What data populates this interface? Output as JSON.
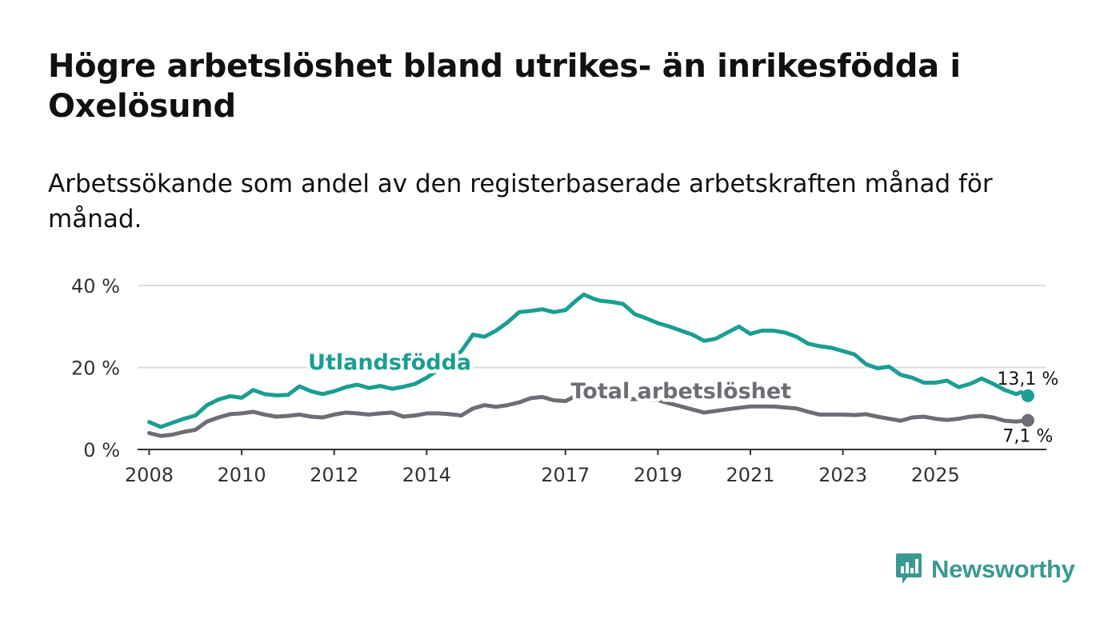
{
  "header": {
    "title": "Högre arbetslöshet bland utrikes- än inrikesfödda i Oxelösund",
    "subtitle": "Arbetssökande som andel av den registerbaserade arbetskraften månad för månad."
  },
  "brand": {
    "name": "Newsworthy",
    "color": "#3a9a92"
  },
  "colors": {
    "foreign": "#1a9e92",
    "total": "#6e6c74",
    "grid": "#dcdcdc",
    "axis": "#333333"
  },
  "chart_data": {
    "type": "line",
    "title": "Högre arbetslöshet bland utrikes- än inrikesfödda i Oxelösund",
    "subtitle": "Arbetssökande som andel av den registerbaserade arbetskraften månad för månad.",
    "xlabel": "",
    "ylabel": "",
    "xlim": [
      2007.75,
      2027.4
    ],
    "ylim": [
      0,
      40
    ],
    "y_ticks": [
      0,
      20,
      40
    ],
    "y_tick_labels": [
      "0 %",
      "20 %",
      "40 %"
    ],
    "x_ticks": [
      2008,
      2010,
      2012,
      2014,
      2017,
      2019,
      2021,
      2023,
      2025
    ],
    "x_tick_labels": [
      "2008",
      "2010",
      "2012",
      "2014",
      "2017",
      "2019",
      "2021",
      "2023",
      "2025"
    ],
    "grid": true,
    "series": [
      {
        "name": "Utlandsfödda",
        "color": "#1a9e92",
        "end_label": "13,1 %",
        "points": [
          [
            2008.0,
            6.7
          ],
          [
            2008.25,
            5.5
          ],
          [
            2008.5,
            6.5
          ],
          [
            2008.75,
            7.5
          ],
          [
            2009.0,
            8.3
          ],
          [
            2009.25,
            10.8
          ],
          [
            2009.5,
            12.2
          ],
          [
            2009.75,
            13.0
          ],
          [
            2010.0,
            12.6
          ],
          [
            2010.25,
            14.5
          ],
          [
            2010.5,
            13.5
          ],
          [
            2010.75,
            13.2
          ],
          [
            2011.0,
            13.3
          ],
          [
            2011.25,
            15.4
          ],
          [
            2011.5,
            14.2
          ],
          [
            2011.75,
            13.5
          ],
          [
            2012.0,
            14.2
          ],
          [
            2012.25,
            15.2
          ],
          [
            2012.5,
            15.8
          ],
          [
            2012.75,
            15.0
          ],
          [
            2013.0,
            15.5
          ],
          [
            2013.25,
            14.8
          ],
          [
            2013.5,
            15.3
          ],
          [
            2013.75,
            16.0
          ],
          [
            2014.0,
            17.5
          ],
          [
            2014.25,
            19.5
          ],
          [
            2014.5,
            21.5
          ],
          [
            2014.75,
            24.0
          ],
          [
            2015.0,
            28.0
          ],
          [
            2015.25,
            27.5
          ],
          [
            2015.5,
            29.0
          ],
          [
            2015.75,
            31.0
          ],
          [
            2016.0,
            33.5
          ],
          [
            2016.25,
            33.8
          ],
          [
            2016.5,
            34.2
          ],
          [
            2016.75,
            33.5
          ],
          [
            2017.0,
            34.0
          ],
          [
            2017.25,
            36.5
          ],
          [
            2017.4,
            37.8
          ],
          [
            2017.6,
            36.8
          ],
          [
            2017.75,
            36.3
          ],
          [
            2018.0,
            36.0
          ],
          [
            2018.25,
            35.5
          ],
          [
            2018.5,
            33.0
          ],
          [
            2018.75,
            32.0
          ],
          [
            2019.0,
            30.8
          ],
          [
            2019.25,
            30.0
          ],
          [
            2019.5,
            29.0
          ],
          [
            2019.75,
            28.0
          ],
          [
            2020.0,
            26.5
          ],
          [
            2020.25,
            27.0
          ],
          [
            2020.5,
            28.5
          ],
          [
            2020.75,
            30.0
          ],
          [
            2021.0,
            28.2
          ],
          [
            2021.25,
            29.0
          ],
          [
            2021.5,
            29.0
          ],
          [
            2021.75,
            28.5
          ],
          [
            2022.0,
            27.5
          ],
          [
            2022.25,
            25.8
          ],
          [
            2022.5,
            25.2
          ],
          [
            2022.75,
            24.8
          ],
          [
            2023.0,
            24.0
          ],
          [
            2023.25,
            23.2
          ],
          [
            2023.5,
            20.8
          ],
          [
            2023.75,
            19.8
          ],
          [
            2024.0,
            20.2
          ],
          [
            2024.25,
            18.2
          ],
          [
            2024.5,
            17.5
          ],
          [
            2024.75,
            16.3
          ],
          [
            2025.0,
            16.3
          ],
          [
            2025.25,
            16.8
          ],
          [
            2025.5,
            15.2
          ],
          [
            2025.75,
            16.0
          ],
          [
            2026.0,
            17.3
          ],
          [
            2026.25,
            16.0
          ],
          [
            2026.5,
            14.5
          ],
          [
            2026.75,
            13.5
          ],
          [
            2026.85,
            14.0
          ],
          [
            2027.0,
            13.1
          ]
        ]
      },
      {
        "name": "Total arbetslöshet",
        "color": "#6e6c74",
        "end_label": "7,1 %",
        "points": [
          [
            2008.0,
            4.0
          ],
          [
            2008.25,
            3.3
          ],
          [
            2008.5,
            3.6
          ],
          [
            2008.75,
            4.3
          ],
          [
            2009.0,
            4.8
          ],
          [
            2009.25,
            6.8
          ],
          [
            2009.5,
            7.8
          ],
          [
            2009.75,
            8.6
          ],
          [
            2010.0,
            8.8
          ],
          [
            2010.25,
            9.2
          ],
          [
            2010.5,
            8.5
          ],
          [
            2010.75,
            8.0
          ],
          [
            2011.0,
            8.2
          ],
          [
            2011.25,
            8.5
          ],
          [
            2011.5,
            8.0
          ],
          [
            2011.75,
            7.8
          ],
          [
            2012.0,
            8.5
          ],
          [
            2012.25,
            9.0
          ],
          [
            2012.5,
            8.8
          ],
          [
            2012.75,
            8.5
          ],
          [
            2013.0,
            8.8
          ],
          [
            2013.25,
            9.0
          ],
          [
            2013.5,
            8.0
          ],
          [
            2013.75,
            8.3
          ],
          [
            2014.0,
            8.8
          ],
          [
            2014.25,
            8.8
          ],
          [
            2014.5,
            8.6
          ],
          [
            2014.75,
            8.3
          ],
          [
            2015.0,
            10.0
          ],
          [
            2015.25,
            10.8
          ],
          [
            2015.5,
            10.4
          ],
          [
            2015.75,
            10.8
          ],
          [
            2016.0,
            11.5
          ],
          [
            2016.25,
            12.5
          ],
          [
            2016.5,
            12.8
          ],
          [
            2016.75,
            12.0
          ],
          [
            2017.0,
            11.8
          ],
          [
            2017.25,
            13.2
          ],
          [
            2017.4,
            13.8
          ],
          [
            2017.6,
            13.2
          ],
          [
            2017.75,
            12.5
          ],
          [
            2018.0,
            12.2
          ],
          [
            2018.5,
            12.3
          ],
          [
            2019.0,
            12.0
          ],
          [
            2019.5,
            10.5
          ],
          [
            2020.0,
            9.0
          ],
          [
            2020.5,
            9.8
          ],
          [
            2021.0,
            10.5
          ],
          [
            2021.5,
            10.5
          ],
          [
            2022.0,
            10.0
          ],
          [
            2022.25,
            9.2
          ],
          [
            2022.5,
            8.5
          ],
          [
            2022.75,
            8.5
          ],
          [
            2023.0,
            8.5
          ],
          [
            2023.25,
            8.4
          ],
          [
            2023.5,
            8.6
          ],
          [
            2023.75,
            8.0
          ],
          [
            2024.0,
            7.5
          ],
          [
            2024.25,
            7.0
          ],
          [
            2024.5,
            7.8
          ],
          [
            2024.75,
            8.0
          ],
          [
            2025.0,
            7.5
          ],
          [
            2025.25,
            7.2
          ],
          [
            2025.5,
            7.5
          ],
          [
            2025.75,
            8.0
          ],
          [
            2026.0,
            8.2
          ],
          [
            2026.25,
            7.8
          ],
          [
            2026.5,
            7.0
          ],
          [
            2026.75,
            6.8
          ],
          [
            2027.0,
            7.1
          ]
        ]
      }
    ],
    "annotations": [
      {
        "text": "Utlandsfödda",
        "series": "Utlandsfödda",
        "x": 2013.2,
        "y": 19.5
      },
      {
        "text": "Total arbetslöshet",
        "series": "Total arbetslöshet",
        "x": 2019.5,
        "y": 12.5
      }
    ]
  }
}
